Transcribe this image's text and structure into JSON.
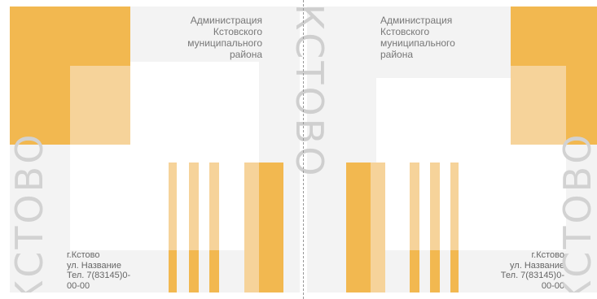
{
  "cards": {
    "left": {
      "admin_lines": [
        "Администрация",
        "Кстовского",
        "муниципального",
        "района"
      ],
      "address_lines": [
        "г.Кстово",
        "ул. Название",
        "Тел. 7(83145)0-",
        "00-00"
      ],
      "vertical_text": "КСТОВО"
    },
    "right": {
      "admin_lines": [
        "Администрация",
        "Кстовского",
        "муниципального",
        "района"
      ],
      "address_lines": [
        "г.Кстово",
        "ул. Название",
        "Тел. 7(83145)0-",
        "00-00"
      ],
      "vertical_text": "КСТОВО"
    }
  },
  "center": {
    "vertical_text": "КСТОВО"
  },
  "colors": {
    "orange": "#f2b850",
    "light_orange": "#f6d39a",
    "pale_orange": "#f9e3bd",
    "gray_text": "#d2d2d2"
  }
}
